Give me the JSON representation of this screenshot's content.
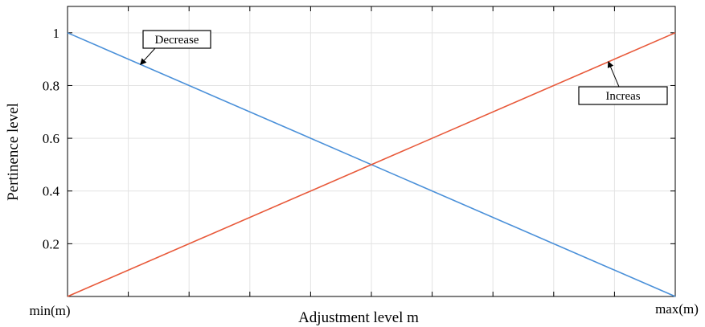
{
  "chart_data": {
    "type": "line",
    "title": "",
    "xlabel": "Adjustment level m",
    "ylabel": "Pertinence level",
    "x_tick_labels": [
      "min(m)",
      "max(m)"
    ],
    "y_tick_labels": [
      "0.2",
      "0.4",
      "0.6",
      "0.8",
      "1"
    ],
    "xlim": [
      0,
      1
    ],
    "ylim": [
      0,
      1.1
    ],
    "grid": true,
    "series": [
      {
        "name": "Decrease",
        "color": "#4a90d9",
        "x": [
          0,
          1
        ],
        "y": [
          1,
          0
        ]
      },
      {
        "name": "Increas",
        "color": "#e8593a",
        "x": [
          0,
          1
        ],
        "y": [
          0,
          1
        ]
      }
    ],
    "annotations": [
      {
        "text": "Decrease",
        "series": "Decrease",
        "x": 0.12,
        "y": 0.88
      },
      {
        "text": "Increas",
        "series": "Increas",
        "x": 0.89,
        "y": 0.89
      }
    ]
  }
}
